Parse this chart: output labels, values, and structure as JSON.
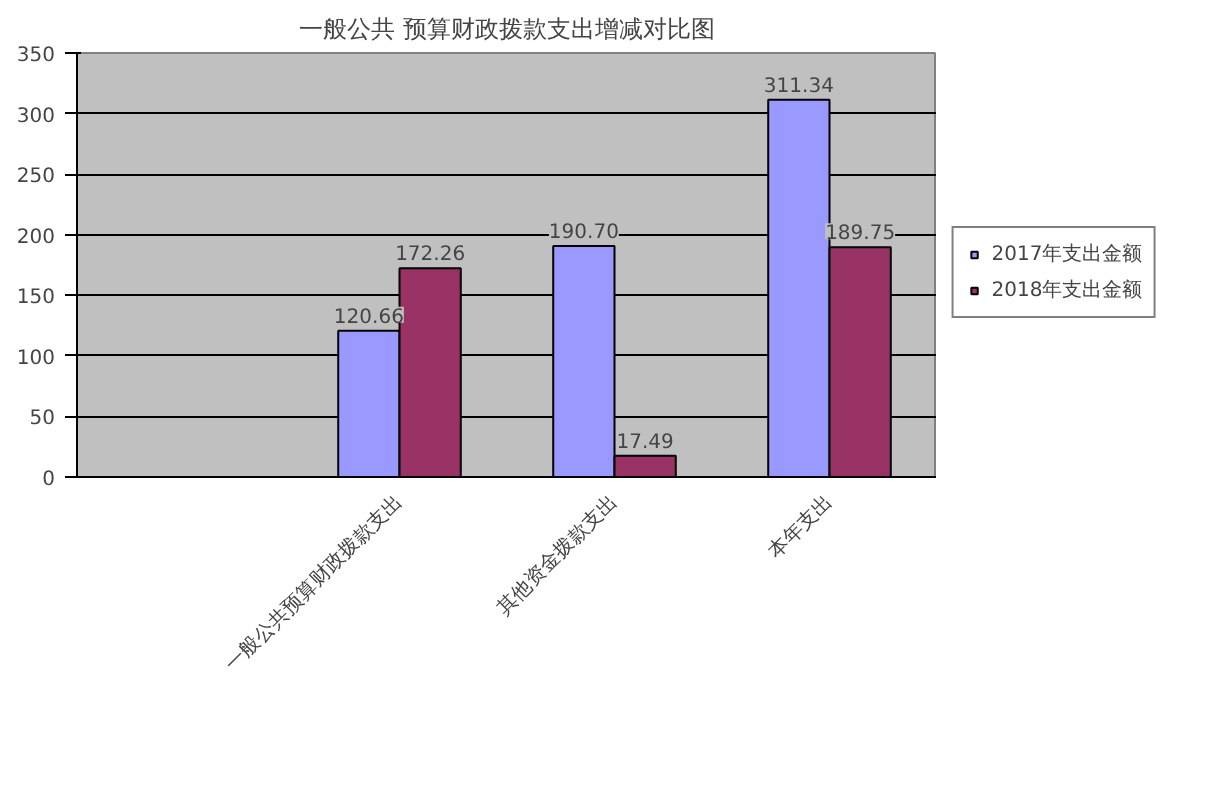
{
  "chart_data": {
    "type": "bar",
    "title": "一般公共 预算财政拨款支出增减对比图",
    "categories": [
      null,
      "一般公共预算财政拨款支出",
      "其他资金拨款支出",
      "本年支出"
    ],
    "series": [
      {
        "name": "2017年支出金额",
        "color": "#9999ff",
        "values": [
          null,
          120.66,
          190.7,
          311.34
        ],
        "value_labels": [
          null,
          "120.66",
          "190.70",
          "311.34"
        ]
      },
      {
        "name": "2018年支出金额",
        "color": "#993366",
        "values": [
          null,
          172.26,
          17.49,
          189.75
        ],
        "value_labels": [
          null,
          "172.26",
          "17.49",
          "189.75"
        ]
      }
    ],
    "ylim": [
      0,
      350
    ],
    "yticks": [
      0,
      50,
      100,
      150,
      200,
      250,
      300,
      350
    ],
    "grid": "y",
    "legend": "right"
  }
}
